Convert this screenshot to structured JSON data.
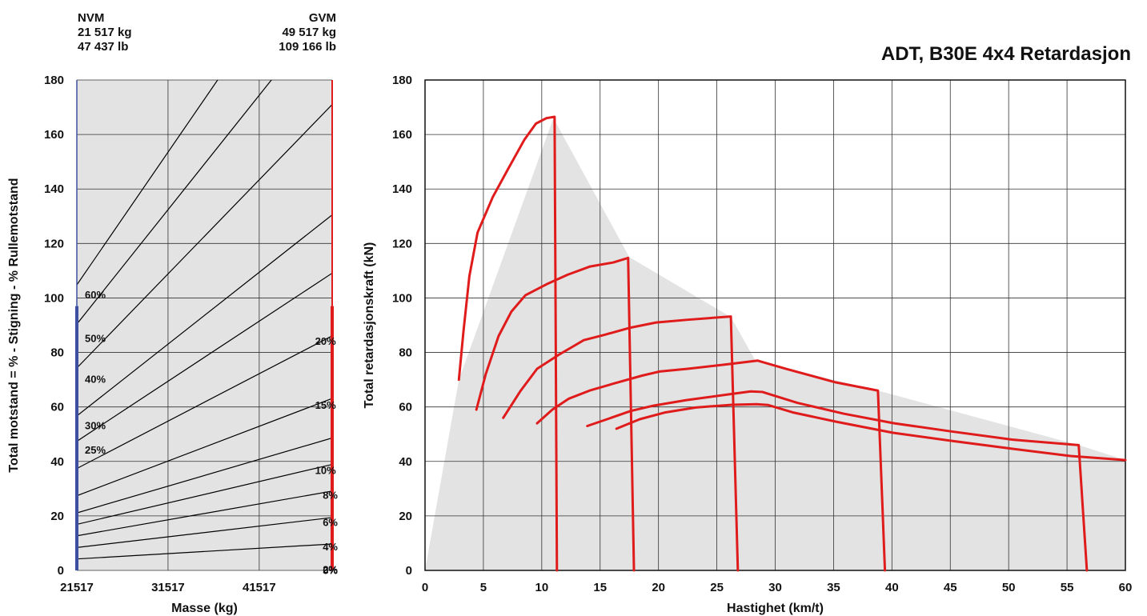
{
  "header": {
    "nvm_label": "NVM",
    "nvm_kg": "21 517 kg",
    "nvm_lb": "47 437 lb",
    "gvm_label": "GVM",
    "gvm_kg": "49 517 kg",
    "gvm_lb": "109 166 lb"
  },
  "colors": {
    "plot_bg": "#e3e3e3",
    "curve": "#e01b1b",
    "nvm_line": "#3c4fa0",
    "gvm_line": "#e01b1b",
    "grade": "#000000"
  },
  "chart_data": [
    {
      "type": "line",
      "ylabel": "Total motstand = % - Stigning - % Rullemotstand",
      "xlabel": "Masse (kg)",
      "xlim": [
        21517,
        49517
      ],
      "ylim": [
        0,
        180
      ],
      "xticks": [
        21517,
        31517,
        41517
      ],
      "yticks": [
        0,
        20,
        40,
        60,
        80,
        100,
        120,
        140,
        160,
        180
      ],
      "grid": true,
      "series": [
        {
          "name": "2%",
          "values": [
            [
              21517,
              4.2
            ],
            [
              49517,
              9.7
            ]
          ]
        },
        {
          "name": "4%",
          "values": [
            [
              21517,
              8.4
            ],
            [
              49517,
              19.4
            ]
          ]
        },
        {
          "name": "6%",
          "values": [
            [
              21517,
              12.7
            ],
            [
              49517,
              29.1
            ]
          ]
        },
        {
          "name": "8%",
          "values": [
            [
              21517,
              16.9
            ],
            [
              49517,
              38.9
            ]
          ]
        },
        {
          "name": "10%",
          "values": [
            [
              21517,
              21.1
            ],
            [
              49517,
              48.6
            ]
          ]
        },
        {
          "name": "15%",
          "values": [
            [
              21517,
              27.4
            ],
            [
              49517,
              63.1
            ]
          ]
        },
        {
          "name": "20%",
          "values": [
            [
              21517,
              37.4
            ],
            [
              49517,
              86.1
            ]
          ]
        },
        {
          "name": "25%",
          "values": [
            [
              21517,
              47.4
            ],
            [
              49517,
              109.1
            ]
          ]
        },
        {
          "name": "30%",
          "values": [
            [
              21517,
              56.7
            ],
            [
              49517,
              130.5
            ]
          ]
        },
        {
          "name": "40%",
          "values": [
            [
              21517,
              74.3
            ],
            [
              49517,
              171.0
            ]
          ]
        },
        {
          "name": "50%",
          "values": [
            [
              21517,
              90.4
            ],
            [
              49517,
              208.0
            ]
          ]
        },
        {
          "name": "60%",
          "values": [
            [
              21517,
              104.8
            ],
            [
              49517,
              241.2
            ]
          ]
        }
      ],
      "labels": [
        {
          "text": "60%",
          "x": 22400,
          "y": 101
        },
        {
          "text": "50%",
          "x": 22400,
          "y": 85
        },
        {
          "text": "40%",
          "x": 22400,
          "y": 70
        },
        {
          "text": "30%",
          "x": 22400,
          "y": 53
        },
        {
          "text": "25%",
          "x": 22400,
          "y": 44
        },
        {
          "text": "20%",
          "x": 48000,
          "y": 84
        },
        {
          "text": "15%",
          "x": 48000,
          "y": 60.5
        },
        {
          "text": "10%",
          "x": 48000,
          "y": 36.5
        },
        {
          "text": "8%",
          "x": 48200,
          "y": 27.5
        },
        {
          "text": "6%",
          "x": 48200,
          "y": 17.5
        },
        {
          "text": "4%",
          "x": 48200,
          "y": 8.5
        },
        {
          "text": "2%",
          "x": 48200,
          "y": 0.2
        },
        {
          "text": "0%",
          "x": 48200,
          "y": -0.2
        }
      ]
    },
    {
      "type": "line",
      "title": "ADT, B30E 4x4  Retardasjon",
      "ylabel": "Total retardasjonskraft (kN)",
      "xlabel": "Hastighet (km/t)",
      "xlim": [
        0,
        60
      ],
      "ylim": [
        0,
        180
      ],
      "xticks": [
        0,
        5,
        10,
        15,
        20,
        25,
        30,
        35,
        40,
        45,
        50,
        55,
        60
      ],
      "yticks": [
        0,
        20,
        40,
        60,
        80,
        100,
        120,
        140,
        160,
        180
      ],
      "grid": true,
      "envelope": [
        [
          0,
          0
        ],
        [
          2.9,
          70
        ],
        [
          11,
          166
        ],
        [
          17.5,
          115
        ],
        [
          26.2,
          93
        ],
        [
          28.3,
          77
        ],
        [
          38.8,
          66
        ],
        [
          56,
          46
        ],
        [
          60,
          40.5
        ],
        [
          60,
          0
        ]
      ],
      "series": [
        {
          "values": [
            [
              2.9,
              70
            ],
            [
              3.3,
              88
            ],
            [
              3.8,
              108
            ],
            [
              4.5,
              124
            ],
            [
              5.8,
              137
            ],
            [
              7.2,
              148
            ],
            [
              8.5,
              158
            ],
            [
              9.5,
              164
            ],
            [
              10.4,
              166
            ],
            [
              11.1,
              166.5
            ],
            [
              11.3,
              0
            ]
          ]
        },
        {
          "values": [
            [
              4.4,
              59
            ],
            [
              5.2,
              72
            ],
            [
              6.3,
              86
            ],
            [
              7.4,
              95
            ],
            [
              8.6,
              101
            ],
            [
              10.4,
              105
            ],
            [
              12.2,
              108.5
            ],
            [
              14.1,
              111.5
            ],
            [
              16.1,
              113
            ],
            [
              17.4,
              114.7
            ],
            [
              17.9,
              0
            ]
          ]
        },
        {
          "values": [
            [
              6.7,
              56
            ],
            [
              8.2,
              66
            ],
            [
              9.6,
              74
            ],
            [
              11.4,
              79
            ],
            [
              12.6,
              82
            ],
            [
              13.6,
              84.5
            ],
            [
              15.4,
              86.5
            ],
            [
              17.5,
              89
            ],
            [
              19.8,
              91
            ],
            [
              22.5,
              92
            ],
            [
              26.2,
              93.2
            ],
            [
              26.8,
              0
            ]
          ]
        },
        {
          "values": [
            [
              9.6,
              54
            ],
            [
              10.9,
              59
            ],
            [
              12.3,
              63
            ],
            [
              14.1,
              66
            ],
            [
              16.1,
              68.5
            ],
            [
              18.6,
              71.5
            ],
            [
              20.1,
              73
            ],
            [
              22.5,
              74
            ],
            [
              25.6,
              75.5
            ],
            [
              28.5,
              77
            ],
            [
              30.9,
              74
            ],
            [
              35.2,
              69
            ],
            [
              38.8,
              66
            ],
            [
              39.4,
              0
            ]
          ]
        },
        {
          "values": [
            [
              13.9,
              53
            ],
            [
              15.6,
              55.5
            ],
            [
              17.6,
              58.5
            ],
            [
              19.6,
              60.5
            ],
            [
              22.4,
              62.5
            ],
            [
              25.8,
              64.5
            ],
            [
              27.9,
              65.7
            ],
            [
              28.9,
              65.5
            ],
            [
              31.9,
              61.5
            ],
            [
              35.9,
              57.5
            ],
            [
              40.2,
              54
            ],
            [
              45.1,
              51
            ],
            [
              50.3,
              48
            ],
            [
              56,
              46
            ],
            [
              56.7,
              0
            ]
          ]
        },
        {
          "values": [
            [
              16.4,
              52
            ],
            [
              18.4,
              55.5
            ],
            [
              20.6,
              58
            ],
            [
              23.2,
              59.8
            ],
            [
              26.3,
              60.8
            ],
            [
              28.4,
              61
            ],
            [
              29.4,
              60.7
            ],
            [
              31.5,
              58
            ],
            [
              35.3,
              54.5
            ],
            [
              40.1,
              50.5
            ],
            [
              45.2,
              47.5
            ],
            [
              50.6,
              44.5
            ],
            [
              55.3,
              42
            ],
            [
              60,
              40.5
            ]
          ]
        }
      ]
    }
  ]
}
